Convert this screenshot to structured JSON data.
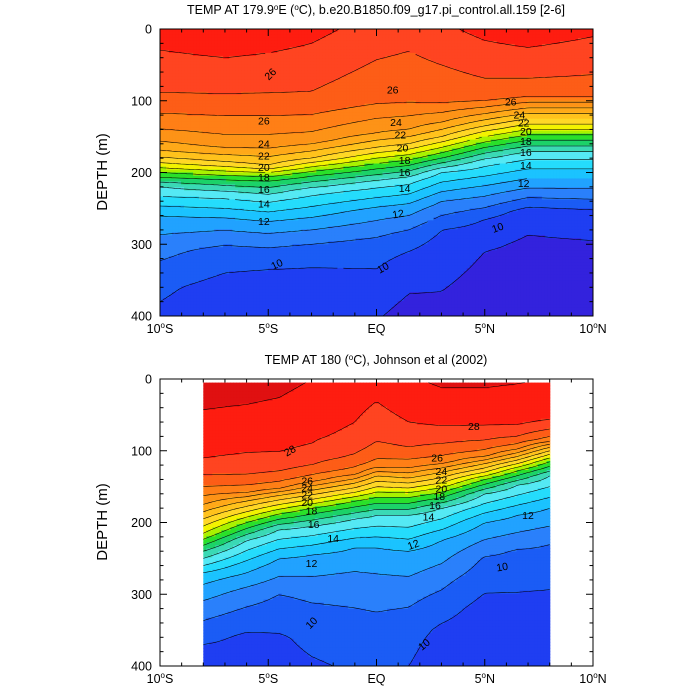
{
  "chart_data": [
    {
      "type": "contour",
      "title": "TEMP AT 179.9°E (°C), b.e20.B1850.f09_g17.pi_control.all.159 [2-6]",
      "title_parts": {
        "prefix": "TEMP AT 179.9",
        "sup1": "o",
        "mid": "E (",
        "sup2": "o",
        "suffix": "C), b.e20.B1850.f09_g17.pi_control.all.159 [2-6]"
      },
      "xlabel": "",
      "ylabel": "DEPTH (m)",
      "xlim": [
        -10,
        10
      ],
      "ylim": [
        400,
        0
      ],
      "x_ticks": [
        {
          "value": -10,
          "num": "10",
          "hemi": "S"
        },
        {
          "value": -5,
          "num": "5",
          "hemi": "S"
        },
        {
          "value": 0,
          "num": "EQ",
          "hemi": ""
        },
        {
          "value": 5,
          "num": "5",
          "hemi": "N"
        },
        {
          "value": 10,
          "num": "10",
          "hemi": "N"
        }
      ],
      "y_ticks": [
        "0",
        "100",
        "200",
        "300",
        "400"
      ],
      "data_extent_x": [
        -10,
        10
      ],
      "contour_interval": 1,
      "contour_levels": [
        8,
        9,
        10,
        11,
        12,
        13,
        14,
        15,
        16,
        17,
        18,
        19,
        20,
        21,
        22,
        23,
        24,
        25,
        26,
        27,
        28,
        29
      ],
      "profiles": [
        {
          "lat": -10,
          "depths": [
            0,
            100,
            150,
            175,
            190,
            200,
            220,
            260,
            300,
            360,
            400
          ],
          "temps": [
            28.5,
            26.8,
            24.5,
            22.5,
            20.5,
            19.0,
            16.0,
            13.0,
            11.5,
            10.2,
            9.8
          ]
        },
        {
          "lat": -7,
          "depths": [
            0,
            100,
            160,
            185,
            198,
            210,
            230,
            270,
            310,
            360,
            400
          ],
          "temps": [
            28.8,
            26.8,
            24.5,
            22.0,
            20.0,
            18.0,
            15.5,
            12.5,
            10.6,
            9.6,
            9.3
          ]
        },
        {
          "lat": -5,
          "depths": [
            0,
            100,
            160,
            190,
            200,
            212,
            235,
            275,
            315,
            360,
            400
          ],
          "temps": [
            28.6,
            26.8,
            24.5,
            22.0,
            20.0,
            18.0,
            15.5,
            12.5,
            10.5,
            9.4,
            9.0
          ]
        },
        {
          "lat": -3,
          "depths": [
            0,
            100,
            155,
            180,
            192,
            205,
            225,
            270,
            310,
            360,
            400
          ],
          "temps": [
            28.3,
            26.8,
            24.5,
            22.0,
            20.0,
            18.0,
            15.5,
            12.5,
            10.5,
            9.4,
            9.0
          ]
        },
        {
          "lat": 0,
          "depths": [
            0,
            100,
            145,
            165,
            180,
            195,
            215,
            255,
            300,
            340,
            400
          ],
          "temps": [
            27.6,
            26.2,
            24.0,
            22.0,
            20.0,
            18.0,
            15.5,
            12.5,
            10.6,
            9.9,
            9.1
          ]
        },
        {
          "lat": 1.5,
          "depths": [
            0,
            100,
            140,
            160,
            175,
            190,
            210,
            250,
            290,
            330,
            400
          ],
          "temps": [
            27.4,
            26.1,
            24.0,
            22.0,
            20.0,
            18.0,
            15.5,
            12.5,
            10.5,
            9.5,
            8.6
          ]
        },
        {
          "lat": 3,
          "depths": [
            0,
            100,
            130,
            150,
            165,
            180,
            200,
            240,
            280,
            320,
            400
          ],
          "temps": [
            27.8,
            26.2,
            24.0,
            22.0,
            20.0,
            18.0,
            15.0,
            12.0,
            10.0,
            9.4,
            8.7
          ]
        },
        {
          "lat": 5,
          "depths": [
            0,
            95,
            118,
            135,
            150,
            165,
            185,
            225,
            265,
            310,
            400
          ],
          "temps": [
            28.3,
            26.5,
            24.0,
            22.0,
            20.0,
            18.0,
            15.5,
            12.5,
            10.0,
            9.0,
            8.4
          ]
        },
        {
          "lat": 7,
          "depths": [
            0,
            90,
            110,
            125,
            140,
            155,
            175,
            215,
            255,
            300,
            400
          ],
          "temps": [
            28.6,
            26.5,
            24.0,
            22.0,
            20.0,
            18.0,
            15.5,
            12.5,
            9.5,
            8.8,
            8.2
          ]
        },
        {
          "lat": 10,
          "depths": [
            0,
            90,
            110,
            125,
            140,
            155,
            175,
            215,
            255,
            300,
            400
          ],
          "temps": [
            28.2,
            26.5,
            24.0,
            22.0,
            20.0,
            18.0,
            15.5,
            12.5,
            9.8,
            8.9,
            8.4
          ]
        }
      ],
      "contour_labels": [
        {
          "text": "26",
          "lat": -4.9,
          "depth": 63,
          "angle": -45
        },
        {
          "text": "26",
          "lat": 0.75,
          "depth": 85,
          "angle": 0
        },
        {
          "text": "26",
          "lat": 6.2,
          "depth": 102,
          "angle": 0
        },
        {
          "text": "24",
          "lat": 6.6,
          "depth": 120,
          "angle": 0
        },
        {
          "text": "22",
          "lat": 6.8,
          "depth": 131,
          "angle": 0
        },
        {
          "text": "20",
          "lat": 6.9,
          "depth": 143,
          "angle": 0
        },
        {
          "text": "18",
          "lat": 6.9,
          "depth": 157,
          "angle": 0
        },
        {
          "text": "16",
          "lat": 6.9,
          "depth": 172,
          "angle": 0
        },
        {
          "text": "14",
          "lat": 6.9,
          "depth": 190,
          "angle": 0
        },
        {
          "text": "12",
          "lat": 6.8,
          "depth": 215,
          "angle": 0
        },
        {
          "text": "26",
          "lat": -5.2,
          "depth": 128,
          "angle": 0
        },
        {
          "text": "24",
          "lat": -5.2,
          "depth": 160,
          "angle": 0
        },
        {
          "text": "22",
          "lat": -5.2,
          "depth": 177,
          "angle": 0
        },
        {
          "text": "20",
          "lat": -5.2,
          "depth": 193,
          "angle": 0
        },
        {
          "text": "18",
          "lat": -5.2,
          "depth": 207,
          "angle": 0
        },
        {
          "text": "16",
          "lat": -5.2,
          "depth": 224,
          "angle": 0
        },
        {
          "text": "14",
          "lat": -5.2,
          "depth": 244,
          "angle": 0
        },
        {
          "text": "12",
          "lat": -5.2,
          "depth": 268,
          "angle": 0
        },
        {
          "text": "10",
          "lat": -4.6,
          "depth": 328,
          "angle": -25
        },
        {
          "text": "24",
          "lat": 0.9,
          "depth": 130,
          "angle": 0
        },
        {
          "text": "22",
          "lat": 1.1,
          "depth": 148,
          "angle": 0
        },
        {
          "text": "20",
          "lat": 1.2,
          "depth": 166,
          "angle": 0
        },
        {
          "text": "18",
          "lat": 1.3,
          "depth": 183,
          "angle": 0
        },
        {
          "text": "16",
          "lat": 1.3,
          "depth": 200,
          "angle": 0
        },
        {
          "text": "14",
          "lat": 1.3,
          "depth": 222,
          "angle": 0
        },
        {
          "text": "12",
          "lat": 1.0,
          "depth": 258,
          "angle": -10
        },
        {
          "text": "10",
          "lat": 0.3,
          "depth": 333,
          "angle": -30
        },
        {
          "text": "10",
          "lat": 5.6,
          "depth": 277,
          "angle": -20
        }
      ]
    },
    {
      "type": "contour",
      "title": "TEMP AT 180 (°C), Johnson et al (2002)",
      "title_parts": {
        "prefix": "TEMP AT 180 (",
        "sup1": "o",
        "mid": "",
        "sup2": "",
        "suffix": "C), Johnson et al (2002)"
      },
      "xlabel": "",
      "ylabel": "DEPTH (m)",
      "xlim": [
        -10,
        10
      ],
      "ylim": [
        400,
        0
      ],
      "x_ticks": [
        {
          "value": -10,
          "num": "10",
          "hemi": "S"
        },
        {
          "value": -5,
          "num": "5",
          "hemi": "S"
        },
        {
          "value": 0,
          "num": "EQ",
          "hemi": ""
        },
        {
          "value": 5,
          "num": "5",
          "hemi": "N"
        },
        {
          "value": 10,
          "num": "10",
          "hemi": "N"
        }
      ],
      "y_ticks": [
        "0",
        "100",
        "200",
        "300",
        "400"
      ],
      "data_extent_x": [
        -8,
        8
      ],
      "data_extent_y": [
        5,
        400
      ],
      "contour_interval": 1,
      "contour_levels": [
        8,
        9,
        10,
        11,
        12,
        13,
        14,
        15,
        16,
        17,
        18,
        19,
        20,
        21,
        22,
        23,
        24,
        25,
        26,
        27,
        28,
        29
      ],
      "profiles": [
        {
          "lat": -8,
          "depths": [
            0,
            75,
            120,
            150,
            175,
            195,
            215,
            240,
            275,
            320,
            380,
            400
          ],
          "temps": [
            29.4,
            28.7,
            27.8,
            26.0,
            24.0,
            22.0,
            20.0,
            17.0,
            13.5,
            11.5,
            9.7,
            9.3
          ]
        },
        {
          "lat": -6,
          "depths": [
            0,
            80,
            125,
            155,
            170,
            185,
            200,
            225,
            260,
            300,
            360,
            400
          ],
          "temps": [
            29.4,
            28.5,
            27.5,
            25.5,
            23.0,
            21.0,
            19.0,
            16.0,
            13.5,
            11.5,
            9.8,
            9.6
          ]
        },
        {
          "lat": -4.5,
          "depths": [
            0,
            95,
            125,
            150,
            162,
            175,
            188,
            210,
            250,
            300,
            360,
            400
          ],
          "temps": [
            29.3,
            28.2,
            27.2,
            25.5,
            23.0,
            21.0,
            19.0,
            16.0,
            13.0,
            11.0,
            9.9,
            9.7
          ]
        },
        {
          "lat": -3,
          "depths": [
            0,
            90,
            120,
            140,
            155,
            168,
            180,
            205,
            245,
            300,
            360,
            400
          ],
          "temps": [
            29.0,
            28.0,
            27.0,
            25.5,
            23.0,
            21.0,
            19.0,
            16.0,
            13.0,
            11.2,
            10.2,
            9.9
          ]
        },
        {
          "lat": -1,
          "depths": [
            0,
            80,
            110,
            130,
            145,
            158,
            170,
            195,
            235,
            285,
            360,
            400
          ],
          "temps": [
            28.6,
            27.8,
            26.8,
            25.5,
            23.0,
            21.0,
            19.0,
            16.0,
            13.0,
            11.5,
            10.4,
            10.1
          ]
        },
        {
          "lat": 0,
          "depths": [
            0,
            70,
            100,
            120,
            135,
            150,
            165,
            190,
            235,
            290,
            360,
            400
          ],
          "temps": [
            28.4,
            27.5,
            26.6,
            25.5,
            23.0,
            21.0,
            19.0,
            16.0,
            13.0,
            11.5,
            10.5,
            10.2
          ]
        },
        {
          "lat": 1.5,
          "depths": [
            0,
            60,
            95,
            120,
            138,
            152,
            165,
            190,
            240,
            300,
            360,
            400
          ],
          "temps": [
            28.9,
            28.0,
            27.0,
            25.5,
            23.0,
            21.0,
            19.0,
            16.0,
            13.0,
            11.3,
            10.3,
            10.0
          ]
        },
        {
          "lat": 3,
          "depths": [
            0,
            60,
            90,
            115,
            130,
            145,
            158,
            180,
            225,
            280,
            350,
            400
          ],
          "temps": [
            29.2,
            28.2,
            27.0,
            25.5,
            23.0,
            21.0,
            19.0,
            16.0,
            13.0,
            11.3,
            9.8,
            9.4
          ]
        },
        {
          "lat": 5,
          "depths": [
            0,
            60,
            85,
            105,
            118,
            130,
            140,
            160,
            200,
            250,
            320,
            400
          ],
          "temps": [
            29.2,
            28.2,
            27.0,
            25.5,
            23.0,
            21.0,
            19.0,
            16.0,
            13.0,
            10.9,
            9.6,
            9.0
          ]
        },
        {
          "lat": 6.5,
          "depths": [
            0,
            60,
            80,
            95,
            108,
            118,
            128,
            148,
            190,
            240,
            310,
            400
          ],
          "temps": [
            29.1,
            28.2,
            27.0,
            25.5,
            23.0,
            21.0,
            19.0,
            16.0,
            13.0,
            10.9,
            9.8,
            9.4
          ]
        },
        {
          "lat": 8,
          "depths": [
            0,
            55,
            70,
            85,
            95,
            105,
            115,
            135,
            180,
            230,
            300,
            400
          ],
          "temps": [
            29.0,
            28.1,
            27.0,
            25.5,
            23.0,
            21.0,
            19.0,
            16.0,
            13.0,
            11.0,
            9.9,
            9.6
          ]
        }
      ],
      "contour_labels": [
        {
          "text": "28",
          "lat": -4.0,
          "depth": 100,
          "angle": -30
        },
        {
          "text": "28",
          "lat": 4.5,
          "depth": 66,
          "angle": 0
        },
        {
          "text": "26",
          "lat": 2.8,
          "depth": 110,
          "angle": 0
        },
        {
          "text": "24",
          "lat": 3.0,
          "depth": 129,
          "angle": 0
        },
        {
          "text": "22",
          "lat": 3.0,
          "depth": 141,
          "angle": 0
        },
        {
          "text": "20",
          "lat": 3.0,
          "depth": 153,
          "angle": 0
        },
        {
          "text": "18",
          "lat": 2.9,
          "depth": 164,
          "angle": 0
        },
        {
          "text": "16",
          "lat": 2.7,
          "depth": 176,
          "angle": 0
        },
        {
          "text": "14",
          "lat": 2.4,
          "depth": 192,
          "angle": 0
        },
        {
          "text": "12",
          "lat": 1.7,
          "depth": 231,
          "angle": -20
        },
        {
          "text": "12",
          "lat": 7.0,
          "depth": 190,
          "angle": 0
        },
        {
          "text": "10",
          "lat": 5.8,
          "depth": 262,
          "angle": -10
        },
        {
          "text": "10",
          "lat": 2.2,
          "depth": 370,
          "angle": -40
        },
        {
          "text": "10",
          "lat": -3.0,
          "depth": 340,
          "angle": -45
        },
        {
          "text": "26",
          "lat": -3.2,
          "depth": 142,
          "angle": 0
        },
        {
          "text": "24",
          "lat": -3.2,
          "depth": 152,
          "angle": 0
        },
        {
          "text": "22",
          "lat": -3.2,
          "depth": 162,
          "angle": 0
        },
        {
          "text": "20",
          "lat": -3.2,
          "depth": 172,
          "angle": 0
        },
        {
          "text": "18",
          "lat": -3.0,
          "depth": 184,
          "angle": 0
        },
        {
          "text": "16",
          "lat": -2.9,
          "depth": 203,
          "angle": 0
        },
        {
          "text": "14",
          "lat": -2.0,
          "depth": 222,
          "angle": 0
        },
        {
          "text": "12",
          "lat": -3.0,
          "depth": 257,
          "angle": 0
        }
      ]
    }
  ]
}
